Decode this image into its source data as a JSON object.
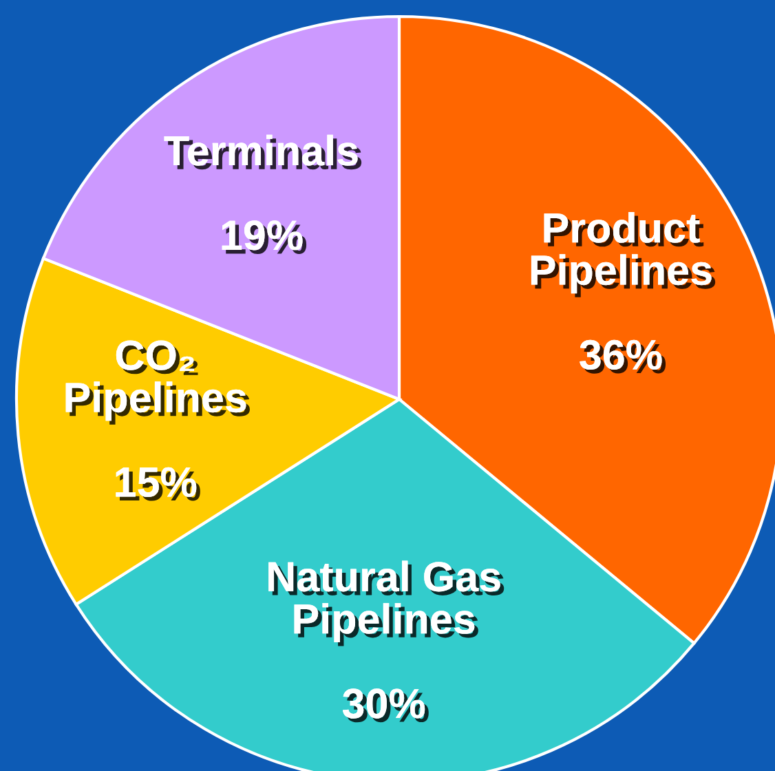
{
  "chart_data": {
    "type": "pie",
    "categories": [
      "Product\nPipelines",
      "Natural Gas\nPipelines",
      "CO₂\nPipelines",
      "Terminals"
    ],
    "values": [
      36,
      30,
      15,
      19
    ],
    "colors": [
      "#ff6600",
      "#33cccc",
      "#ffcc00",
      "#cc99ff"
    ],
    "value_labels": [
      "36%",
      "30%",
      "15%",
      "19%"
    ],
    "legend": false
  }
}
